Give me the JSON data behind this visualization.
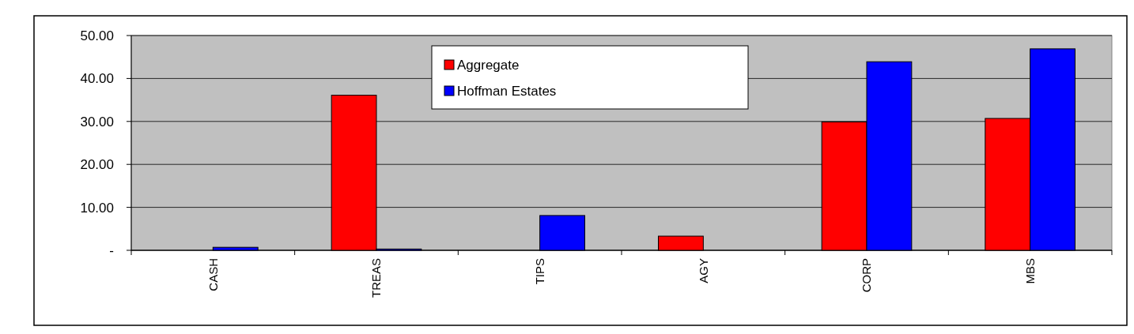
{
  "chart_data": {
    "type": "bar",
    "categories": [
      "CASH",
      "TREAS",
      "TIPS",
      "AGY",
      "CORP",
      "MBS"
    ],
    "series": [
      {
        "name": "Aggregate",
        "color": "#ff0000",
        "values": [
          0,
          36.1,
          0,
          3.3,
          29.9,
          30.7
        ]
      },
      {
        "name": "Hoffman Estates",
        "color": "#0000ff",
        "values": [
          0.7,
          0.3,
          8.1,
          0,
          43.9,
          46.9
        ]
      }
    ],
    "ylim": [
      0,
      50
    ],
    "yticks": [
      {
        "value": 0,
        "label": "-"
      },
      {
        "value": 10,
        "label": "10.00"
      },
      {
        "value": 20,
        "label": "20.00"
      },
      {
        "value": 30,
        "label": "30.00"
      },
      {
        "value": 40,
        "label": "40.00"
      },
      {
        "value": 50,
        "label": "50.00"
      }
    ],
    "grid": "y",
    "legend": "top"
  }
}
